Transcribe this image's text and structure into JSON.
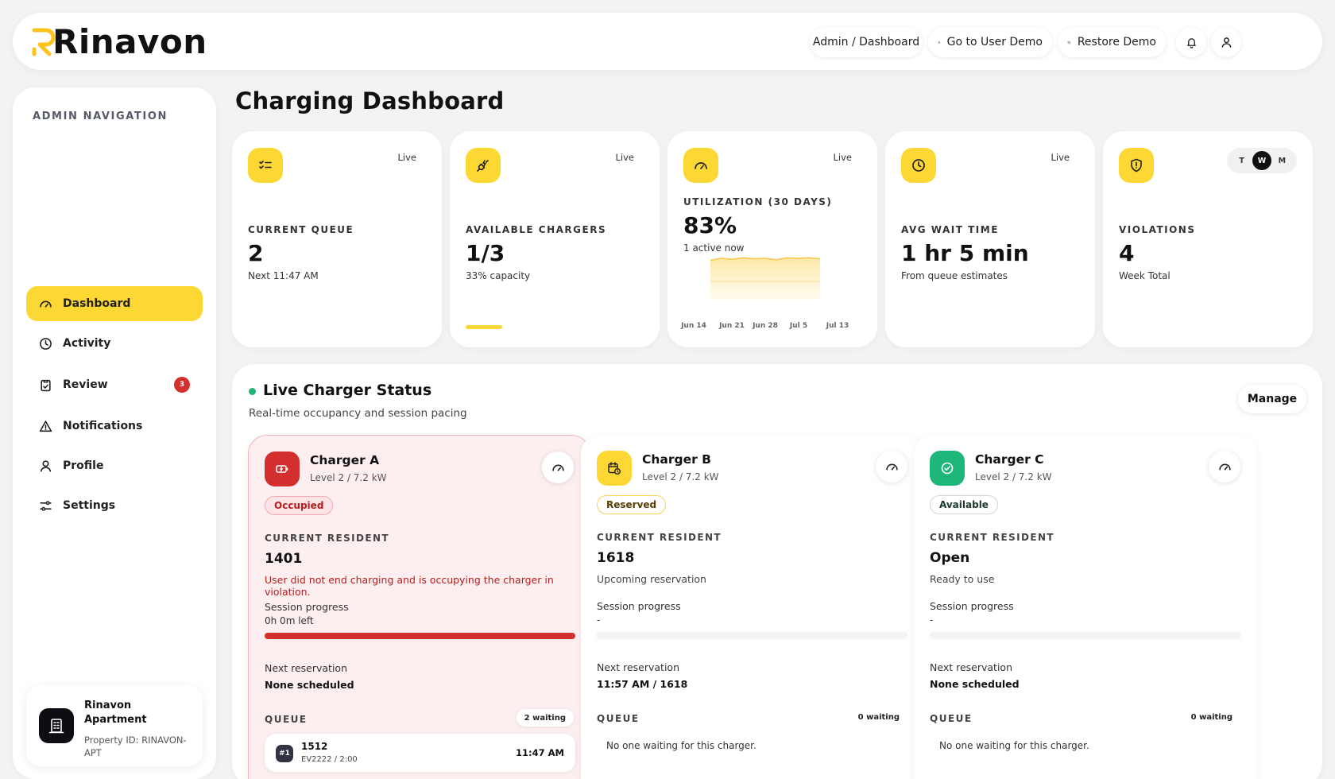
{
  "brand": {
    "logo_text": "Rinavon",
    "accent": "#fdd835"
  },
  "header": {
    "breadcrumb": "Admin / Dashboard",
    "user_demo": "Go to User Demo",
    "restore_demo": "Restore Demo",
    "notification_icon": "bell-icon",
    "profile_icon": "user-icon"
  },
  "sidebar": {
    "heading": "ADMIN NAVIGATION",
    "items": [
      {
        "label": "Dashboard",
        "icon": "gauge-icon",
        "active": true
      },
      {
        "label": "Activity",
        "icon": "clock-icon"
      },
      {
        "label": "Review",
        "icon": "clipboard-icon",
        "badge": "3"
      },
      {
        "label": "Notifications",
        "icon": "warning-icon"
      },
      {
        "label": "Profile",
        "icon": "user-icon"
      },
      {
        "label": "Settings",
        "icon": "sliders-icon"
      }
    ],
    "property": {
      "name": "Rinavon Apartment",
      "id": "Property ID: RINAVON-APT"
    }
  },
  "page": {
    "title": "Charging Dashboard"
  },
  "stats": [
    {
      "label": "CURRENT QUEUE",
      "value": "2",
      "sub": "Next 11:47 AM",
      "tag": "Live",
      "icon": "checklist-icon"
    },
    {
      "label": "AVAILABLE CHARGERS",
      "value": "1/3",
      "sub": "33% capacity",
      "tag": "Live",
      "icon": "plug-icon",
      "progress": 0.33
    },
    {
      "label": "UTILIZATION (30 DAYS)",
      "value": "83%",
      "sub": "1 active now",
      "tag": "Live",
      "icon": "gauge-icon"
    },
    {
      "label": "AVG WAIT TIME",
      "value": "1 hr 5 min",
      "sub": "From queue estimates",
      "tag": "Live",
      "icon": "clock-icon"
    },
    {
      "label": "VIOLATIONS",
      "value": "4",
      "sub": "Week Total",
      "icon": "shield-alert-icon",
      "toggle": [
        "T",
        "W",
        "M"
      ],
      "toggle_selected": "W"
    }
  ],
  "chart_data": {
    "type": "area",
    "title": "",
    "x_ticks": [
      "Jun 14",
      "Jun 21",
      "Jun 28",
      "Jul 5",
      "Jul 13"
    ],
    "values": [
      80,
      84,
      82,
      85,
      83,
      84,
      81,
      85,
      84,
      85,
      83
    ],
    "ylim": [
      0,
      100
    ],
    "color": "#f9c74f",
    "grid": false
  },
  "live": {
    "title": "Live Charger Status",
    "subtitle": "Real-time occupancy and session pacing",
    "manage": "Manage",
    "resident_label": "CURRENT RESIDENT",
    "progress_label": "Session progress",
    "next_label": "Next reservation",
    "queue_label": "QUEUE",
    "chargers": [
      {
        "name": "Charger A",
        "level": "Level 2 / 7.2 kW",
        "status": "Occupied",
        "resident": "1401",
        "note": "User did not end charging and is occupying the charger in violation.",
        "progress_text": "0h 0m left",
        "progress": 1.0,
        "next": "None scheduled",
        "waiting": "2 waiting",
        "queue": [
          {
            "pos": "#1",
            "unit": "1512",
            "car": "EV2222 / 2:00",
            "time": "11:47 AM"
          }
        ],
        "status_color": "#d32f2f",
        "icon": "charging-icon"
      },
      {
        "name": "Charger B",
        "level": "Level 2 / 7.2 kW",
        "status": "Reserved",
        "resident": "1618",
        "note": "Upcoming reservation",
        "progress_text": "-",
        "progress": 0,
        "next": "11:57 AM / 1618",
        "waiting": "0 waiting",
        "empty": "No one waiting for this charger.",
        "status_color": "#fdd835",
        "icon": "calendar-clock-icon"
      },
      {
        "name": "Charger C",
        "level": "Level 2 / 7.2 kW",
        "status": "Available",
        "resident": "Open",
        "note": "Ready to use",
        "progress_text": "-",
        "progress": 0,
        "next": "None scheduled",
        "waiting": "0 waiting",
        "empty": "No one waiting for this charger.",
        "status_color": "#1fb67a",
        "icon": "check-circle-icon"
      }
    ]
  }
}
